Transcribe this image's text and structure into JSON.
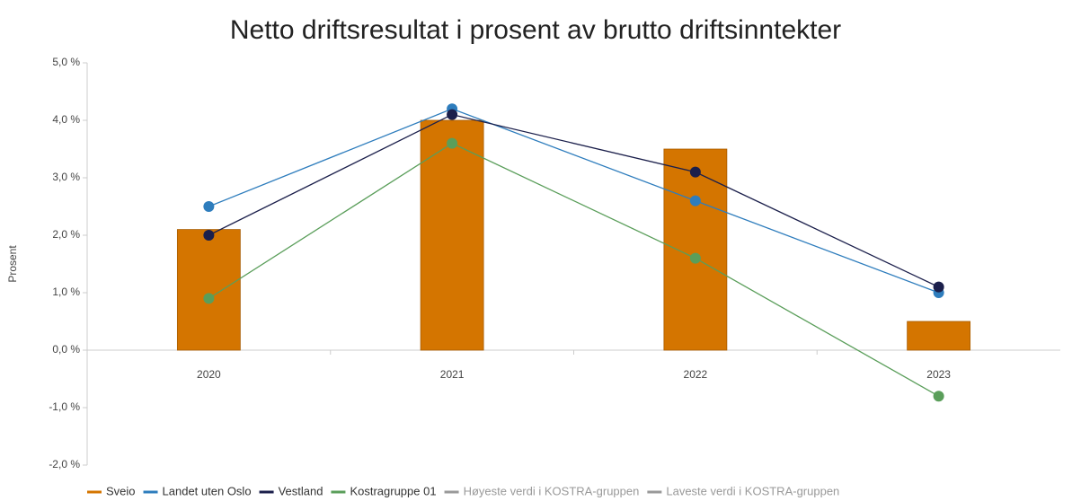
{
  "chart_data": {
    "type": "bar-line",
    "title": "Netto driftsresultat i prosent av brutto driftsinntekter",
    "y_label": "Prosent",
    "categories": [
      "2020",
      "2021",
      "2022",
      "2023"
    ],
    "ylim": [
      -2,
      5
    ],
    "yticks": [
      {
        "value": -2,
        "label": "-2,0 %"
      },
      {
        "value": -1,
        "label": "-1,0 %"
      },
      {
        "value": 0,
        "label": "0,0 %"
      },
      {
        "value": 1,
        "label": "1,0 %"
      },
      {
        "value": 2,
        "label": "2,0 %"
      },
      {
        "value": 3,
        "label": "3,0 %"
      },
      {
        "value": 4,
        "label": "4,0 %"
      },
      {
        "value": 5,
        "label": "5,0 %"
      }
    ],
    "legend": "bottom",
    "series": [
      {
        "name": "Sveio",
        "kind": "bar",
        "color": "#d47500",
        "values": [
          2.1,
          4.0,
          3.5,
          0.5
        ]
      },
      {
        "name": "Landet uten Oslo",
        "kind": "line",
        "color": "#2e7dbd",
        "values": [
          2.5,
          4.2,
          2.6,
          1.0
        ]
      },
      {
        "name": "Vestland",
        "kind": "line",
        "color": "#1b1f4b",
        "values": [
          2.0,
          4.1,
          3.1,
          1.1
        ]
      },
      {
        "name": "Kostragruppe 01",
        "kind": "line",
        "color": "#5a9e5a",
        "values": [
          0.9,
          3.6,
          1.6,
          -0.8
        ]
      },
      {
        "name": "Høyeste verdi i KOSTRA-gruppen",
        "kind": "line",
        "color": "#999999",
        "values": [
          null,
          null,
          null,
          null
        ]
      },
      {
        "name": "Laveste verdi i KOSTRA-gruppen",
        "kind": "line",
        "color": "#999999",
        "values": [
          null,
          null,
          null,
          null
        ]
      }
    ]
  }
}
